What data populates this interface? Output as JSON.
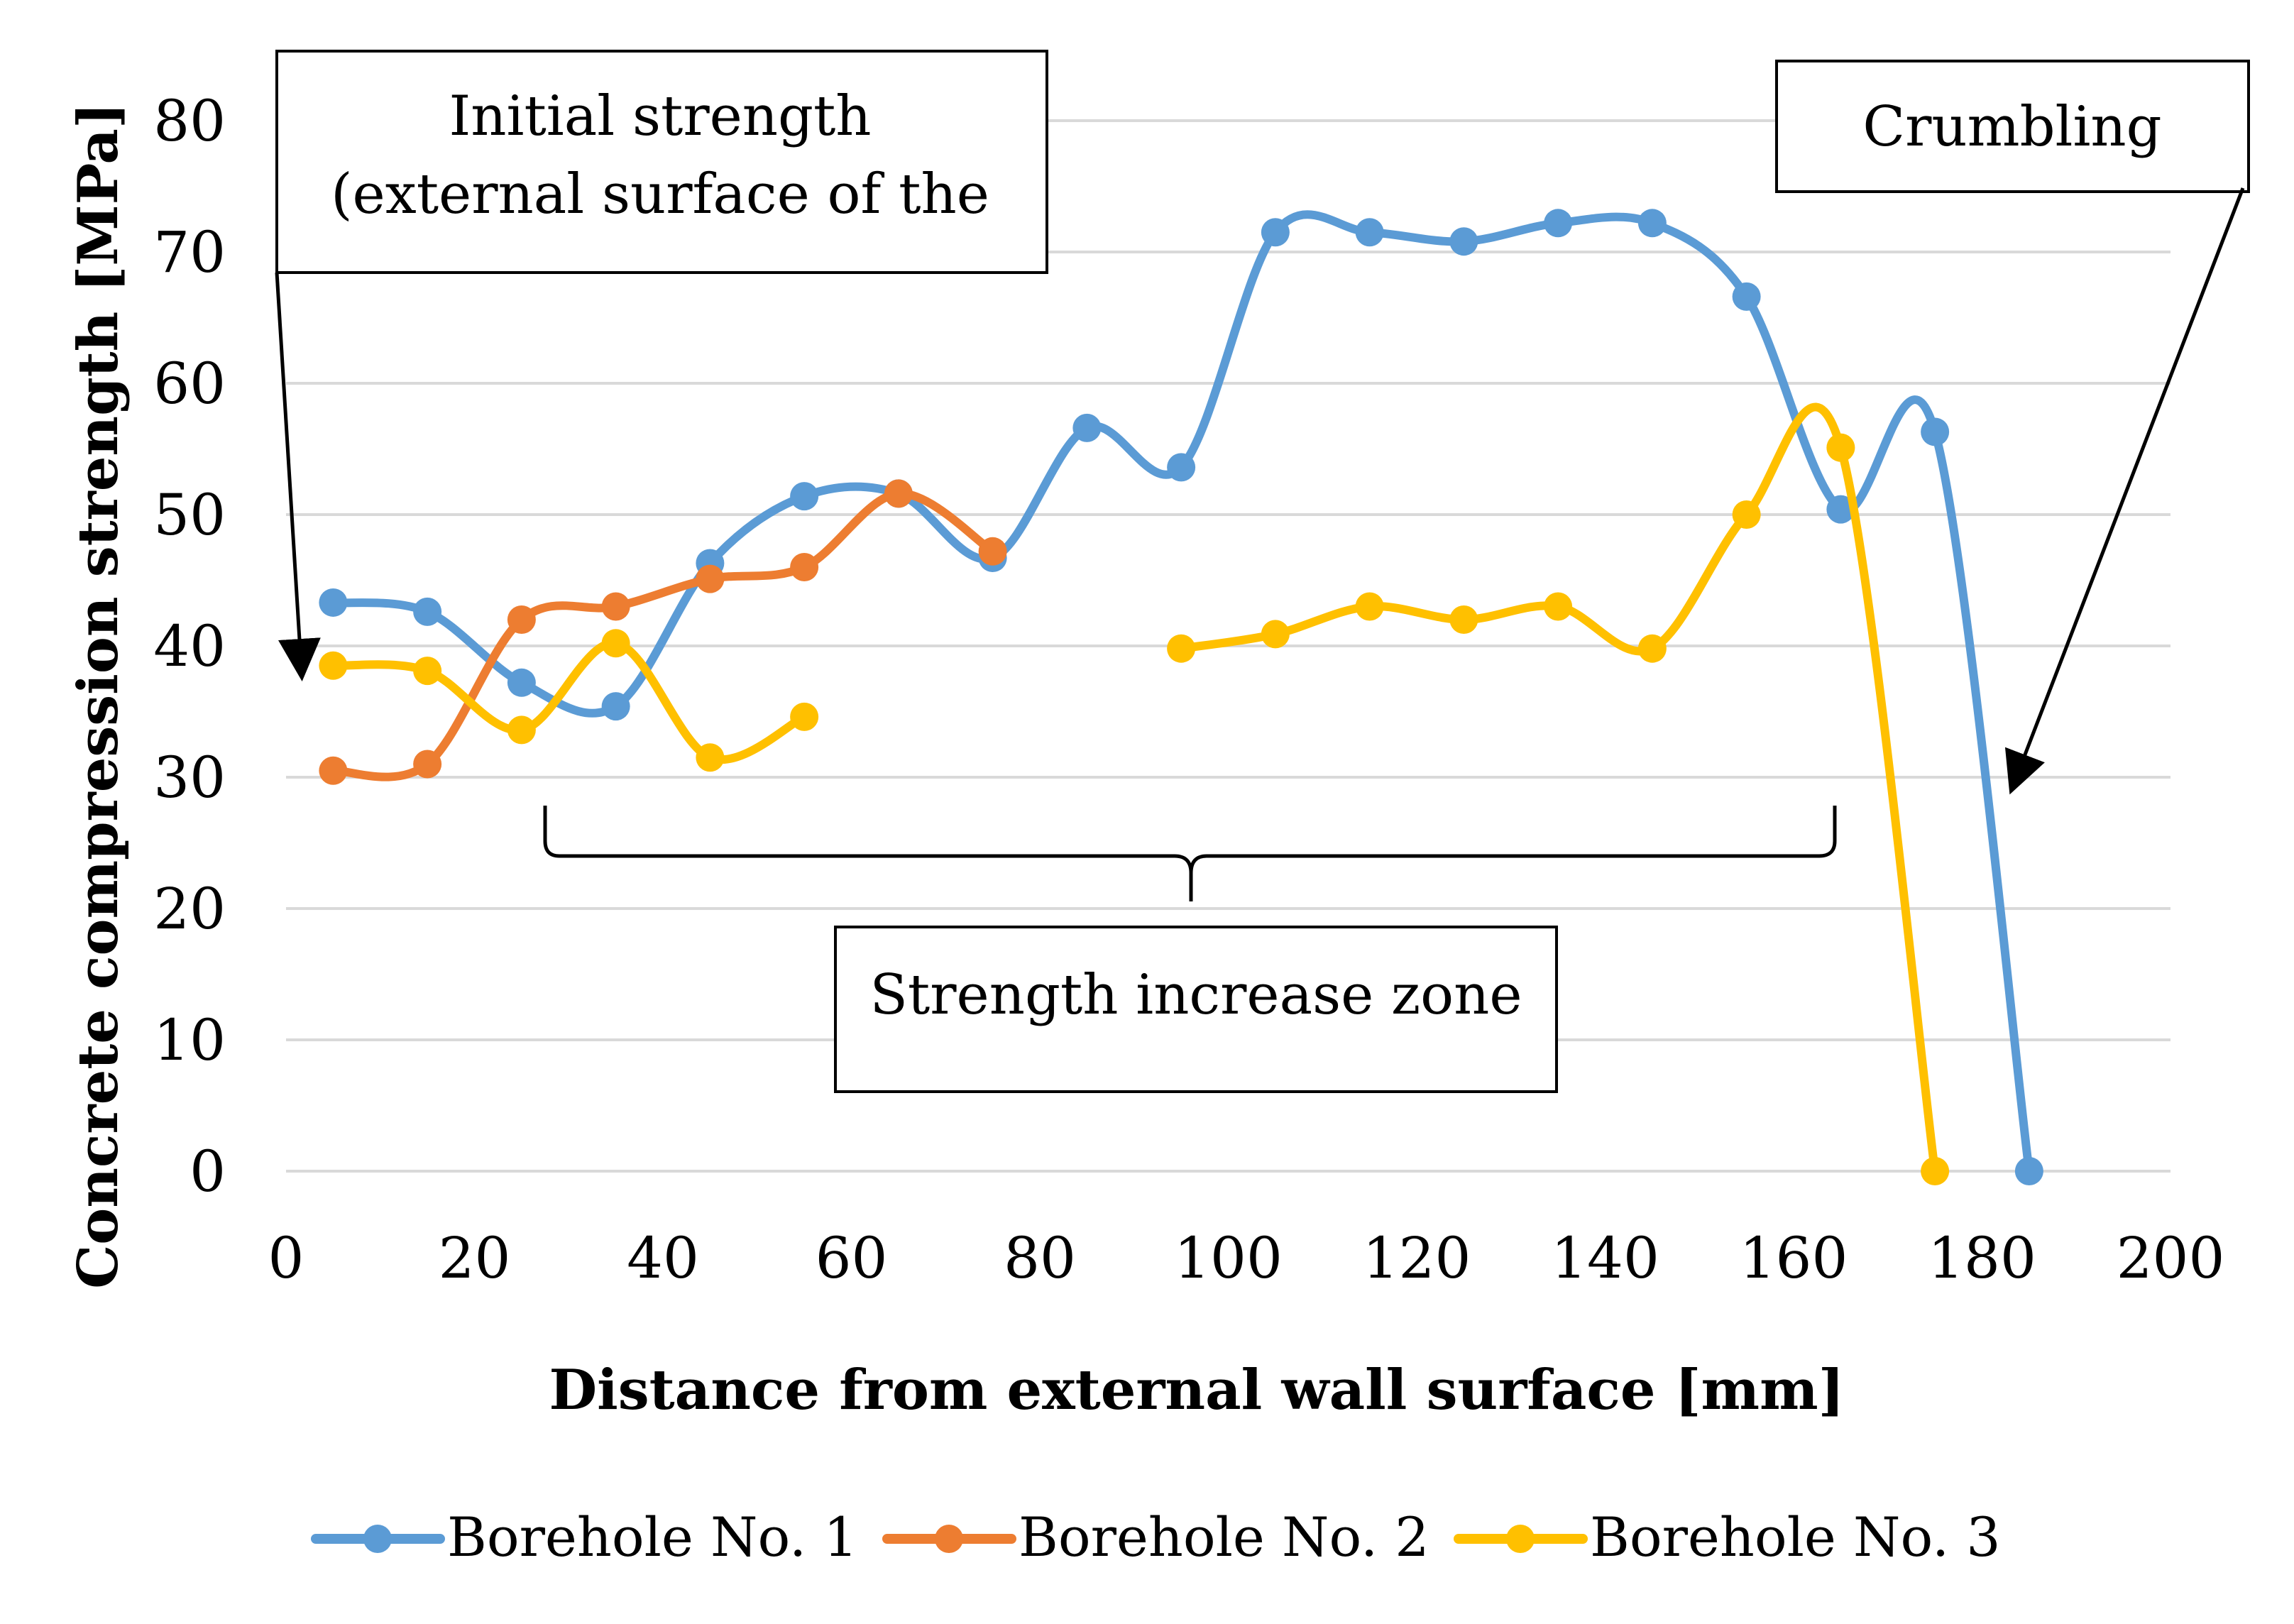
{
  "chart_data": {
    "type": "line",
    "title": "",
    "xlabel": "Distance from external wall surface [mm]",
    "ylabel": "Concrete compression strength [MPa]",
    "xlim": [
      0,
      200
    ],
    "ylim": [
      0,
      80
    ],
    "xticks": [
      0,
      20,
      40,
      60,
      80,
      100,
      120,
      140,
      160,
      180,
      200
    ],
    "yticks": [
      0,
      10,
      20,
      30,
      40,
      50,
      60,
      70,
      80
    ],
    "grid": "horizontal",
    "legend_position": "bottom",
    "series": [
      {
        "name": "Borehole No. 1",
        "color": "#5B9BD5",
        "points": [
          [
            5,
            43.3
          ],
          [
            15,
            42.6
          ],
          [
            25,
            37.2
          ],
          [
            35,
            35.4
          ],
          [
            45,
            46.3
          ],
          [
            55,
            51.4
          ],
          [
            65,
            51.6
          ],
          [
            75,
            46.7
          ],
          [
            85,
            56.6
          ],
          [
            95,
            53.6
          ],
          [
            105,
            71.5
          ],
          [
            115,
            71.5
          ],
          [
            125,
            70.8
          ],
          [
            135,
            72.2
          ],
          [
            145,
            72.2
          ],
          [
            155,
            66.6
          ],
          [
            165,
            50.4
          ],
          [
            175,
            56.3
          ],
          [
            185,
            0
          ]
        ]
      },
      {
        "name": "Borehole No. 2",
        "color": "#ED7D31",
        "points": [
          [
            5,
            30.5
          ],
          [
            15,
            31.0
          ],
          [
            25,
            42.0
          ],
          [
            35,
            43.0
          ],
          [
            45,
            45.1
          ],
          [
            55,
            46.0
          ],
          [
            65,
            51.6
          ],
          [
            75,
            47.2
          ]
        ]
      },
      {
        "name": "Borehole No. 3",
        "color": "#FFC000",
        "segments": [
          [
            [
              5,
              38.5
            ],
            [
              15,
              38.1
            ],
            [
              25,
              33.6
            ],
            [
              35,
              40.2
            ],
            [
              45,
              31.5
            ],
            [
              55,
              34.6
            ]
          ],
          [
            [
              95,
              39.8
            ],
            [
              105,
              40.9
            ],
            [
              115,
              43.0
            ],
            [
              125,
              42.0
            ],
            [
              135,
              43.0
            ],
            [
              145,
              39.8
            ],
            [
              155,
              50.0
            ],
            [
              165,
              55.1
            ],
            [
              175,
              0
            ]
          ]
        ]
      }
    ],
    "annotations": {
      "initial_strength": [
        "Initial strength",
        "(external surface of the"
      ],
      "crumbling": "Crumbling",
      "increase_zone": "Strength increase zone"
    }
  }
}
